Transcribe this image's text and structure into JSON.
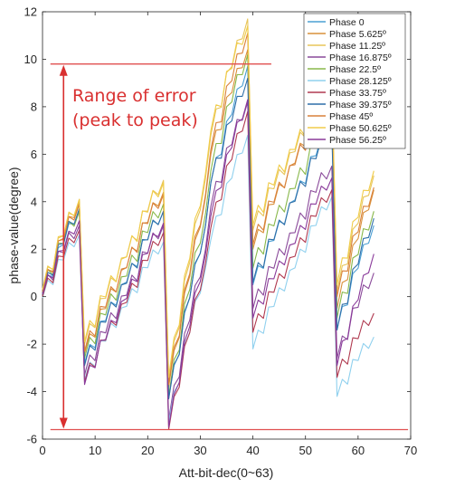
{
  "chart_data": {
    "type": "line",
    "xlabel": "Att-bit-dec(0~63)",
    "ylabel": "phase-value(degree)",
    "xlim": [
      0,
      70
    ],
    "ylim": [
      -6,
      12
    ],
    "xticks": [
      0,
      10,
      20,
      30,
      40,
      50,
      60,
      70
    ],
    "yticks": [
      -6,
      -4,
      -2,
      0,
      2,
      4,
      6,
      8,
      10,
      12
    ],
    "grid": false,
    "legend_position": "top-right",
    "series": [
      {
        "name": "Phase 0",
        "color": "#4a9fd4"
      },
      {
        "name": "Phase 5.625º",
        "color": "#d9903a"
      },
      {
        "name": "Phase 11.25º",
        "color": "#e8c55a"
      },
      {
        "name": "Phase 16.875º",
        "color": "#8a4a9a"
      },
      {
        "name": "Phase 22.5º",
        "color": "#88b84a"
      },
      {
        "name": "Phase 28.125º",
        "color": "#8fd0ee"
      },
      {
        "name": "Phase 33.75º",
        "color": "#b03a50"
      },
      {
        "name": "Phase 39.375º",
        "color": "#2f6fa8"
      },
      {
        "name": "Phase 45º",
        "color": "#d9813a"
      },
      {
        "name": "Phase 50.625º",
        "color": "#f0cc4a"
      },
      {
        "name": "Phase 56.25º",
        "color": "#8a3a9a"
      }
    ],
    "segments": [
      {
        "x": [
          0,
          7
        ],
        "start": [
          0.0,
          0.2,
          0.3,
          0.1,
          0.2,
          -0.05,
          0.0,
          0.1,
          0.2,
          0.3,
          0.1
        ],
        "end": [
          3.7,
          4.0,
          4.1,
          3.0,
          3.6,
          2.6,
          2.8,
          3.7,
          3.9,
          4.1,
          3.2
        ]
      },
      {
        "x": [
          8,
          23
        ],
        "start": [
          -2.8,
          -2.4,
          -2.0,
          -3.3,
          -2.6,
          -3.5,
          -3.6,
          -2.9,
          -2.3,
          -1.9,
          -3.7
        ],
        "end": [
          3.6,
          4.4,
          4.9,
          3.0,
          3.9,
          2.3,
          2.7,
          3.6,
          4.3,
          4.8,
          3.1
        ]
      },
      {
        "x": [
          24,
          31
        ],
        "start": [
          -4.3,
          -3.8,
          -3.5,
          -5.2,
          -4.2,
          -5.3,
          -5.6,
          -4.3,
          -3.7,
          -3.4,
          -5.5
        ],
        "end": [
          3.0,
          4.2,
          5.0,
          2.0,
          3.5,
          1.2,
          1.4,
          3.0,
          4.3,
          5.2,
          1.8
        ]
      },
      {
        "x": [
          32,
          39
        ],
        "start": [
          4.8,
          6.0,
          6.8,
          3.8,
          5.3,
          2.4,
          2.9,
          4.8,
          6.2,
          7.0,
          3.4
        ]
      },
      {
        "x": [
          40,
          55
        ],
        "start": [
          0.5,
          2.0,
          2.8,
          -0.5,
          1.2,
          -2.2,
          -1.5,
          0.6,
          2.2,
          3.0,
          -0.9
        ],
        "end": [
          7.2,
          8.8,
          9.0,
          5.5,
          7.5,
          4.2,
          4.5,
          7.0,
          8.5,
          9.0,
          5.0
        ]
      },
      {
        "x": [
          56,
          63
        ],
        "start": [
          -1.4,
          -0.5,
          0.2,
          -2.6,
          -0.9,
          -4.2,
          -3.4,
          -1.4,
          0.0,
          0.5,
          -2.9
        ],
        "end": [
          3.0,
          4.5,
          5.1,
          1.0,
          3.6,
          -1.7,
          -0.7,
          3.3,
          4.6,
          5.3,
          1.8
        ]
      }
    ],
    "annotation": {
      "text_line1": "Range of error",
      "text_line2": "(peak to peak)",
      "top_value": 9.8,
      "bottom_value": -5.6
    }
  }
}
